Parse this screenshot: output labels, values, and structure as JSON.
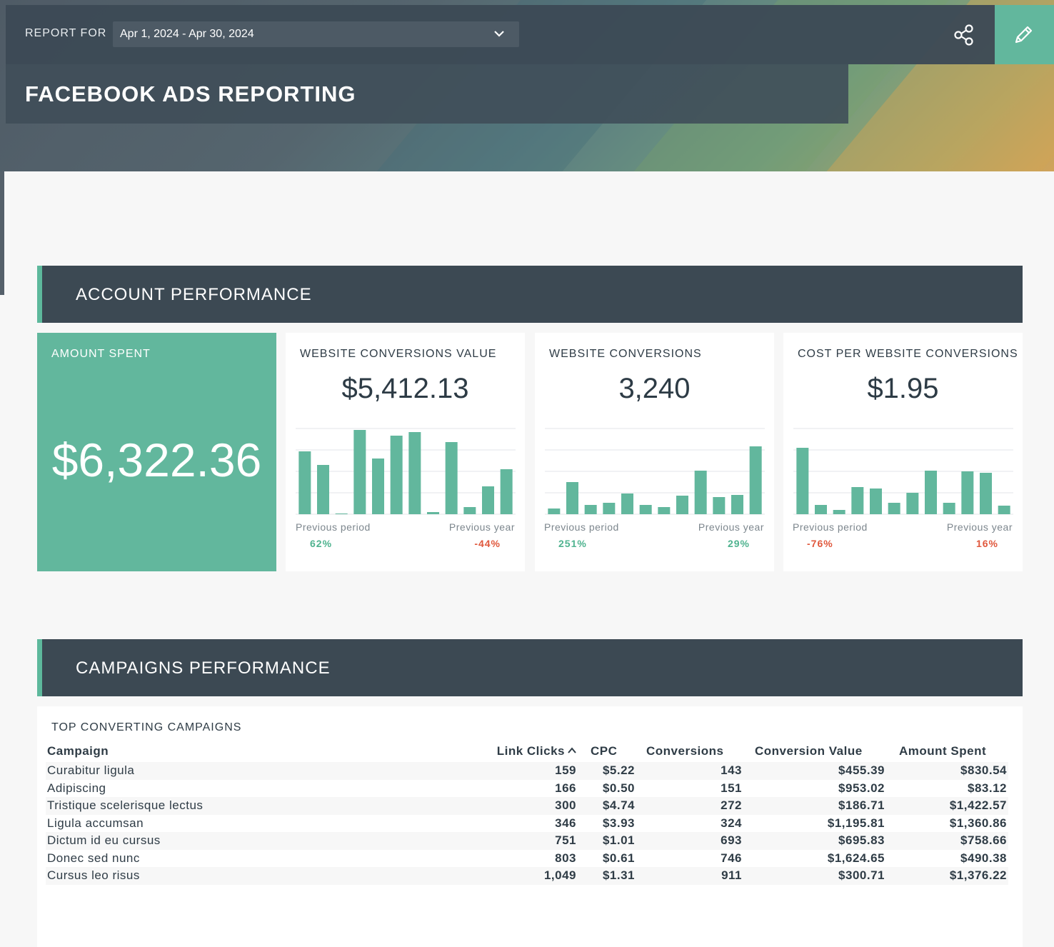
{
  "header": {
    "report_for_label": "REPORT FOR",
    "date_range": "Apr 1, 2024 - Apr 30, 2024",
    "title": "FACEBOOK ADS REPORTING",
    "share_icon": "share-icon",
    "edit_icon": "pencil-icon"
  },
  "colors": {
    "accent": "#62b79d",
    "header_dark": "#3c4953",
    "positive": "#4fb38f",
    "negative": "#e0583d"
  },
  "account_section": {
    "title": "ACCOUNT PERFORMANCE",
    "cards": [
      {
        "title": "AMOUNT SPENT",
        "value": "$6,322.36"
      },
      {
        "title": "WEBSITE CONVERSIONS VALUE",
        "value": "$5,412.13",
        "prev_period_label": "Previous period",
        "prev_period_value": "62%",
        "prev_year_label": "Previous year",
        "prev_year_value": "-44%"
      },
      {
        "title": "WEBSITE CONVERSIONS",
        "value": "3,240",
        "prev_period_label": "Previous period",
        "prev_period_value": "251%",
        "prev_year_label": "Previous year",
        "prev_year_value": "29%"
      },
      {
        "title": "COST PER WEBSITE CONVERSIONS",
        "value": "$1.95",
        "prev_period_label": "Previous period",
        "prev_period_value": "-76%",
        "prev_year_label": "Previous year",
        "prev_year_value": "16%"
      }
    ]
  },
  "chart_data": [
    {
      "type": "bar",
      "values": [
        88,
        69,
        1,
        118,
        78,
        110,
        115,
        3,
        101,
        10,
        39,
        63
      ]
    },
    {
      "type": "bar",
      "values": [
        8,
        45,
        13,
        16,
        29,
        13,
        10,
        26,
        61,
        24,
        27,
        95
      ]
    },
    {
      "type": "bar",
      "values": [
        93,
        13,
        6,
        38,
        36,
        16,
        30,
        61,
        16,
        60,
        58,
        12
      ]
    }
  ],
  "campaigns_section": {
    "title": "CAMPAIGNS PERFORMANCE",
    "table_title": "TOP CONVERTING CAMPAIGNS",
    "columns": [
      "Campaign",
      "Link Clicks",
      "CPC",
      "Conversions",
      "Conversion Value",
      "Amount Spent"
    ],
    "sort_icon": "chevron-up-icon",
    "rows": [
      [
        "Curabitur ligula",
        "159",
        "$5.22",
        "143",
        "$455.39",
        "$830.54"
      ],
      [
        "Adipiscing",
        "166",
        "$0.50",
        "151",
        "$953.02",
        "$83.12"
      ],
      [
        "Tristique scelerisque lectus",
        "300",
        "$4.74",
        "272",
        "$186.71",
        "$1,422.57"
      ],
      [
        "Ligula accumsan",
        "346",
        "$3.93",
        "324",
        "$1,195.81",
        "$1,360.86"
      ],
      [
        "Dictum id eu cursus",
        "751",
        "$1.01",
        "693",
        "$695.83",
        "$758.66"
      ],
      [
        "Donec sed nunc",
        "803",
        "$0.61",
        "746",
        "$1,624.65",
        "$490.38"
      ],
      [
        "Cursus leo risus",
        "1,049",
        "$1.31",
        "911",
        "$300.71",
        "$1,376.22"
      ]
    ]
  }
}
